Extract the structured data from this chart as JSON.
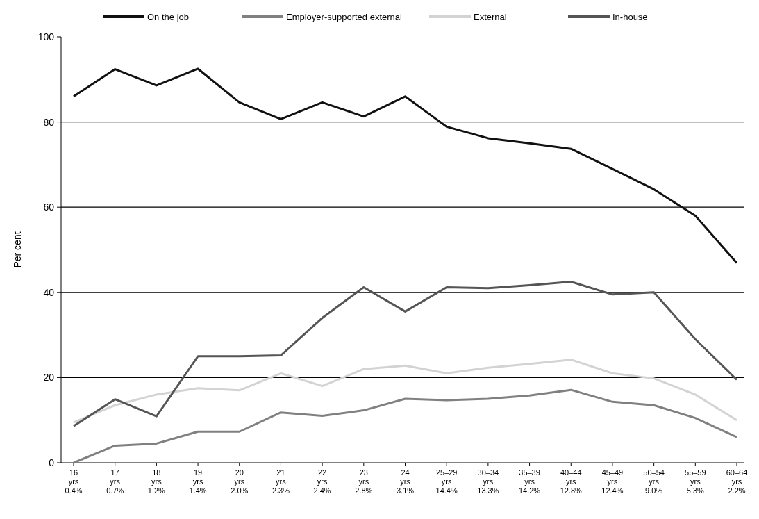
{
  "chart_data": {
    "type": "line",
    "ylabel": "Per cent",
    "categories": [
      "16\nyrs\n0.4%",
      "17\nyrs\n0.7%",
      "18\nyrs\n1.2%",
      "19\nyrs\n1.4%",
      "20\nyrs\n2.0%",
      "21\nyrs\n2.3%",
      "22\nyrs\n2.4%",
      "23\nyrs\n2.8%",
      "24\nyrs\n3.1%",
      "25–29\nyrs\n14.4%",
      "30–34\nyrs\n13.3%",
      "35–39\nyrs\n14.2%",
      "40–44\nyrs\n12.8%",
      "45–49\nyrs\n12.4%",
      "50–54\nyrs\n9.0%",
      "55–59\nyrs\n5.3%",
      "60–64\nyrs\n2.2%"
    ],
    "series": [
      {
        "name": "On the job",
        "color": "#111111",
        "values": [
          86,
          92.4,
          88.6,
          92.5,
          84.6,
          80.7,
          84.6,
          81.3,
          86,
          78.9,
          76.2,
          75,
          73.7,
          69,
          64.2,
          58,
          46.9
        ]
      },
      {
        "name": "Employer-supported external",
        "color": "#808080",
        "values": [
          0,
          4,
          4.5,
          7.3,
          7.3,
          11.8,
          11,
          12.3,
          15,
          14.7,
          15,
          15.8,
          17.1,
          14.3,
          13.5,
          10.5,
          6
        ]
      },
      {
        "name": "External",
        "color": "#d3d3d3",
        "values": [
          9.5,
          13.5,
          16,
          17.5,
          17,
          21,
          18,
          22,
          22.8,
          21,
          22.3,
          23.2,
          24.2,
          21,
          19.8,
          16,
          10
        ]
      },
      {
        "name": "In-house",
        "color": "#555555",
        "values": [
          8.6,
          14.9,
          10.9,
          25,
          25,
          25.2,
          34,
          41.2,
          35.5,
          41.2,
          41,
          41.7,
          42.5,
          39.5,
          40,
          29,
          19.5
        ]
      }
    ],
    "ylim": [
      0,
      100
    ],
    "yticks": [
      0,
      20,
      40,
      60,
      80,
      100
    ],
    "grid": "y",
    "legend": "top",
    "marker": "none",
    "line_style": "solid"
  }
}
